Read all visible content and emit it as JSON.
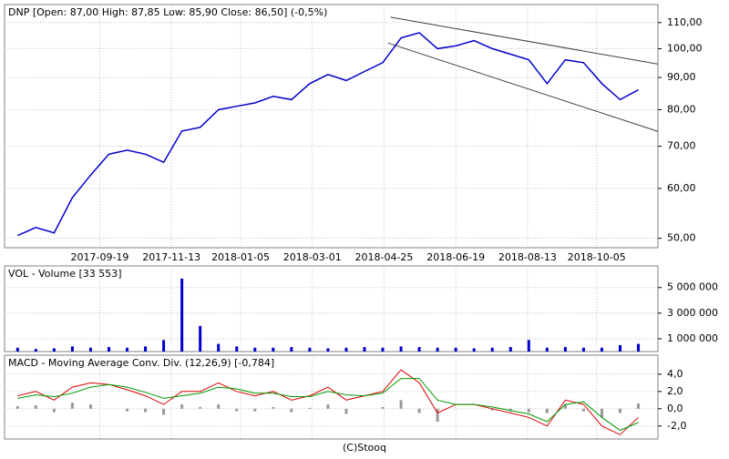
{
  "chart_data": [
    {
      "type": "line",
      "title": "DNP [Open: 87,00  High: 87,85  Low: 85,90  Close: 86,50] (-0,5%)",
      "log": true,
      "grid": true,
      "xlim": [
        "2017-07-08",
        "2018-11-21"
      ],
      "xticks": [
        "2017-09-19",
        "2017-11-13",
        "2018-01-05",
        "2018-03-01",
        "2018-04-25",
        "2018-06-19",
        "2018-08-13",
        "2018-10-05"
      ],
      "ylim": [
        48.3,
        117.5
      ],
      "yticks": [
        {
          "value": 50,
          "label": "50,00"
        },
        {
          "value": 60,
          "label": "60,00"
        },
        {
          "value": 70,
          "label": "70,00"
        },
        {
          "value": 80,
          "label": "80,00"
        },
        {
          "value": 90,
          "label": "90,00"
        },
        {
          "value": 100,
          "label": "100,00"
        },
        {
          "value": 110,
          "label": "110,00"
        }
      ],
      "x": [
        "2017-07-18",
        "2017-08-01",
        "2017-08-15",
        "2017-08-29",
        "2017-09-12",
        "2017-09-26",
        "2017-10-10",
        "2017-10-24",
        "2017-11-07",
        "2017-11-21",
        "2017-12-05",
        "2017-12-19",
        "2018-01-02",
        "2018-01-16",
        "2018-01-30",
        "2018-02-13",
        "2018-02-27",
        "2018-03-13",
        "2018-03-27",
        "2018-04-10",
        "2018-04-24",
        "2018-05-08",
        "2018-05-22",
        "2018-06-05",
        "2018-06-19",
        "2018-07-03",
        "2018-07-17",
        "2018-07-31",
        "2018-08-14",
        "2018-08-28",
        "2018-09-11",
        "2018-09-25",
        "2018-10-09",
        "2018-10-23",
        "2018-11-06"
      ],
      "series": [
        {
          "color": "#0000cc",
          "values": [
            50.5,
            52,
            51,
            58,
            63,
            68,
            69,
            68,
            66,
            74,
            75,
            80,
            81,
            82,
            84,
            83,
            88,
            91,
            89,
            92,
            95,
            104,
            106,
            100,
            101,
            103,
            100,
            98,
            96,
            88,
            96,
            95,
            88,
            83,
            86
          ]
        }
      ],
      "trendlines": [
        {
          "x": [
            "2018-04-30",
            "2018-11-21"
          ],
          "y": [
            112.2,
            94.5
          ]
        },
        {
          "x": [
            "2018-04-28",
            "2018-11-21"
          ],
          "y": [
            102.1,
            73.9
          ]
        }
      ]
    },
    {
      "type": "bar",
      "title": "VOL - Volume [33 553]",
      "ylim": [
        0,
        6690000
      ],
      "yticks": [
        {
          "value": 1000000,
          "label": "1 000 000"
        },
        {
          "value": 3000000,
          "label": "3 000 000"
        },
        {
          "value": 5000000,
          "label": "5 000 000"
        }
      ],
      "series": [
        {
          "color": "#0000cc",
          "values": [
            300000,
            200000,
            250000,
            400000,
            300000,
            350000,
            300000,
            400000,
            900000,
            5700000,
            2000000,
            600000,
            400000,
            300000,
            300000,
            350000,
            300000,
            250000,
            300000,
            350000,
            300000,
            400000,
            350000,
            300000,
            300000,
            250000,
            300000,
            350000,
            900000,
            300000,
            350000,
            300000,
            300000,
            500000,
            600000
          ]
        }
      ]
    },
    {
      "type": "line",
      "title": "MACD - Moving Average Conv. Div. (12,26,9) [-0,784]",
      "ylim": [
        -3.5,
        6.2
      ],
      "yticks": [
        {
          "value": -2,
          "label": "-2,0"
        },
        {
          "value": 0,
          "label": "0,0"
        },
        {
          "value": 2,
          "label": "2,0"
        },
        {
          "value": 4,
          "label": "4,0"
        }
      ],
      "series": [
        {
          "color": "#999999",
          "kind": "bar",
          "values": [
            0.3,
            0.4,
            -0.4,
            0.7,
            0.5,
            0,
            -0.3,
            -0.4,
            -0.7,
            0.5,
            0.2,
            0.5,
            -0.3,
            -0.3,
            0.2,
            -0.4,
            0.1,
            0.5,
            -0.6,
            0,
            0.2,
            1.0,
            -0.5,
            -1.5,
            0,
            0,
            -0.2,
            -0.3,
            -0.4,
            -0.5,
            0.5,
            -0.3,
            -1.0,
            -0.5,
            0.6
          ]
        },
        {
          "color": "#dd0000",
          "values": [
            1.5,
            2.0,
            1.0,
            2.5,
            3.0,
            2.8,
            2.2,
            1.5,
            0.5,
            2.0,
            2.0,
            3.0,
            2.0,
            1.5,
            2.0,
            1.0,
            1.5,
            2.5,
            1.0,
            1.5,
            2.0,
            4.5,
            3.0,
            -0.5,
            0.5,
            0.5,
            0,
            -0.5,
            -1.0,
            -2.0,
            1.0,
            0.5,
            -2.0,
            -3.0,
            -1.0
          ]
        },
        {
          "color": "#009900",
          "values": [
            1.2,
            1.6,
            1.4,
            1.8,
            2.5,
            2.8,
            2.5,
            1.9,
            1.2,
            1.5,
            1.8,
            2.5,
            2.3,
            1.8,
            1.8,
            1.4,
            1.4,
            2.0,
            1.6,
            1.5,
            1.8,
            3.5,
            3.5,
            1.0,
            0.5,
            0.5,
            0.2,
            -0.2,
            -0.6,
            -1.5,
            0.5,
            0.8,
            -1.0,
            -2.5,
            -1.6
          ]
        }
      ]
    }
  ],
  "footer": "(C)Stooq"
}
